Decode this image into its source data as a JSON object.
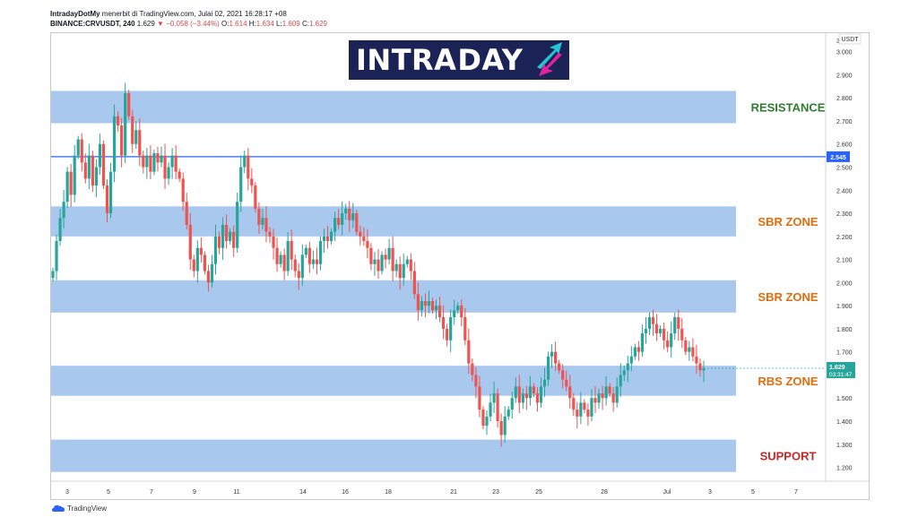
{
  "header": {
    "line1_user": "IntradayDotMy",
    "line1_rest": "menerbit di TradingView.com, Julai 02, 2021 16:28:17 +08",
    "line2_symbol": "BINANCE:CRVUSDT, 240",
    "line2_last": "1.629",
    "line2_change": "−0.058 (−3.44%)",
    "line2_o_label": "O:",
    "line2_o": "1.614",
    "line2_h_label": "H:",
    "line2_h": "1.634",
    "line2_l_label": "L:",
    "line2_l": "1.609",
    "line2_c_label": "C:",
    "line2_c": "1.629"
  },
  "logo": {
    "text_a": "INTRA",
    "text_b": "DAY"
  },
  "footer": {
    "brand": "TradingView"
  },
  "colors": {
    "up": "#26a69a",
    "down": "#ef5350",
    "zone_fill": "#a9c8ee",
    "resistance_text": "#2e7d32",
    "sbr_text": "#e46c0a",
    "support_text": "#c62828",
    "hline": "#2962ff",
    "logo_bg": "#1b2356",
    "logo_arrow_cyan": "#24c4d4",
    "logo_arrow_magenta": "#e0249c"
  },
  "chart_data": {
    "type": "candlestick",
    "y_axis_unit_label": "USDT",
    "ylim": [
      1.14,
      3.08
    ],
    "y_ticks": [
      1.2,
      1.3,
      1.4,
      1.5,
      1.6,
      1.7,
      1.8,
      1.9,
      2.0,
      2.1,
      2.2,
      2.3,
      2.4,
      2.5,
      2.6,
      2.7,
      2.8,
      2.9,
      3.0
    ],
    "y_tick_labels": [
      "1.200",
      "1.300",
      "1.400",
      "1.500",
      "1.600",
      "1.700",
      "1.800",
      "1.900",
      "2.000",
      "2.100",
      "2.200",
      "2.300",
      "2.400",
      "2.500",
      "2.600",
      "2.700",
      "2.800",
      "2.900",
      "3.000"
    ],
    "top_tick_label": "3",
    "x_ticks": [
      "3",
      "5",
      "7",
      "9",
      "11",
      "14",
      "16",
      "18",
      "21",
      "23",
      "25",
      "28",
      "Jul",
      "3",
      "5",
      "7"
    ],
    "hline": {
      "value": 2.545,
      "label": "2.545"
    },
    "last_price": {
      "value": 1.629,
      "label": "1.629",
      "countdown": "03:31:47"
    },
    "zones": [
      {
        "name": "RESISTANCE",
        "low": 2.69,
        "high": 2.83
      },
      {
        "name": "SBR ZONE",
        "low": 2.2,
        "high": 2.33
      },
      {
        "name": "SBR ZONE",
        "low": 1.87,
        "high": 2.01
      },
      {
        "name": "RBS ZONE",
        "low": 1.51,
        "high": 1.64
      },
      {
        "name": "SUPPORT",
        "low": 1.18,
        "high": 1.32
      }
    ],
    "closes_approx": [
      2.05,
      2.18,
      2.28,
      2.35,
      2.48,
      2.38,
      2.55,
      2.62,
      2.52,
      2.45,
      2.55,
      2.42,
      2.5,
      2.6,
      2.42,
      2.3,
      2.48,
      2.72,
      2.68,
      2.55,
      2.82,
      2.72,
      2.6,
      2.66,
      2.55,
      2.5,
      2.55,
      2.48,
      2.56,
      2.52,
      2.55,
      2.45,
      2.5,
      2.55,
      2.48,
      2.45,
      2.35,
      2.25,
      2.1,
      2.05,
      2.15,
      2.12,
      2.05,
      2.0,
      2.08,
      2.2,
      2.15,
      2.25,
      2.18,
      2.22,
      2.15,
      2.35,
      2.5,
      2.55,
      2.45,
      2.42,
      2.32,
      2.25,
      2.28,
      2.22,
      2.2,
      2.15,
      2.08,
      2.12,
      2.05,
      2.18,
      2.1,
      2.05,
      2.02,
      2.12,
      2.15,
      2.08,
      2.1,
      2.08,
      2.18,
      2.2,
      2.18,
      2.22,
      2.28,
      2.25,
      2.3,
      2.32,
      2.27,
      2.3,
      2.22,
      2.2,
      2.18,
      2.15,
      2.08,
      2.1,
      2.05,
      2.12,
      2.1,
      2.15,
      2.05,
      2.08,
      2.02,
      2.08,
      2.1,
      2.05,
      1.95,
      1.88,
      1.92,
      1.9,
      1.92,
      1.88,
      1.9,
      1.85,
      1.8,
      1.75,
      1.85,
      1.88,
      1.9,
      1.85,
      1.75,
      1.65,
      1.6,
      1.55,
      1.45,
      1.38,
      1.42,
      1.48,
      1.52,
      1.4,
      1.34,
      1.42,
      1.45,
      1.5,
      1.55,
      1.48,
      1.52,
      1.5,
      1.55,
      1.52,
      1.48,
      1.55,
      1.58,
      1.68,
      1.7,
      1.65,
      1.62,
      1.58,
      1.55,
      1.5,
      1.45,
      1.42,
      1.48,
      1.45,
      1.42,
      1.5,
      1.48,
      1.52,
      1.5,
      1.55,
      1.52,
      1.48,
      1.55,
      1.6,
      1.62,
      1.65,
      1.68,
      1.72,
      1.7,
      1.78,
      1.8,
      1.85,
      1.82,
      1.78,
      1.8,
      1.75,
      1.72,
      1.78,
      1.85,
      1.8,
      1.75,
      1.7,
      1.72,
      1.68,
      1.65,
      1.62,
      1.629
    ]
  }
}
